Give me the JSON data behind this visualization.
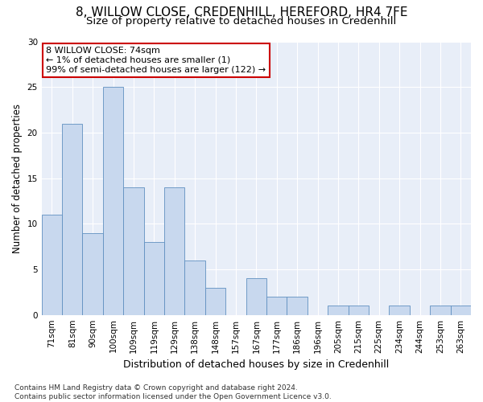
{
  "title1": "8, WILLOW CLOSE, CREDENHILL, HEREFORD, HR4 7FE",
  "title2": "Size of property relative to detached houses in Credenhill",
  "xlabel": "Distribution of detached houses by size in Credenhill",
  "ylabel": "Number of detached properties",
  "categories": [
    "71sqm",
    "81sqm",
    "90sqm",
    "100sqm",
    "109sqm",
    "119sqm",
    "129sqm",
    "138sqm",
    "148sqm",
    "157sqm",
    "167sqm",
    "177sqm",
    "186sqm",
    "196sqm",
    "205sqm",
    "215sqm",
    "225sqm",
    "234sqm",
    "244sqm",
    "253sqm",
    "263sqm"
  ],
  "values": [
    11,
    21,
    9,
    25,
    14,
    8,
    14,
    6,
    3,
    0,
    4,
    2,
    2,
    0,
    1,
    1,
    0,
    1,
    0,
    1,
    1
  ],
  "bar_color": "#c8d8ee",
  "bar_edge_color": "#6090c0",
  "annotation_text": "8 WILLOW CLOSE: 74sqm\n← 1% of detached houses are smaller (1)\n99% of semi-detached houses are larger (122) →",
  "annotation_box_color": "#ffffff",
  "annotation_box_edge_color": "#cc0000",
  "ylim": [
    0,
    30
  ],
  "yticks": [
    0,
    5,
    10,
    15,
    20,
    25,
    30
  ],
  "background_color": "#ffffff",
  "plot_bg_color": "#e8eef8",
  "grid_color": "#ffffff",
  "footer": "Contains HM Land Registry data © Crown copyright and database right 2024.\nContains public sector information licensed under the Open Government Licence v3.0.",
  "title1_fontsize": 11,
  "title2_fontsize": 9.5,
  "xlabel_fontsize": 9,
  "ylabel_fontsize": 8.5,
  "annotation_fontsize": 8,
  "footer_fontsize": 6.5,
  "tick_fontsize": 7.5
}
